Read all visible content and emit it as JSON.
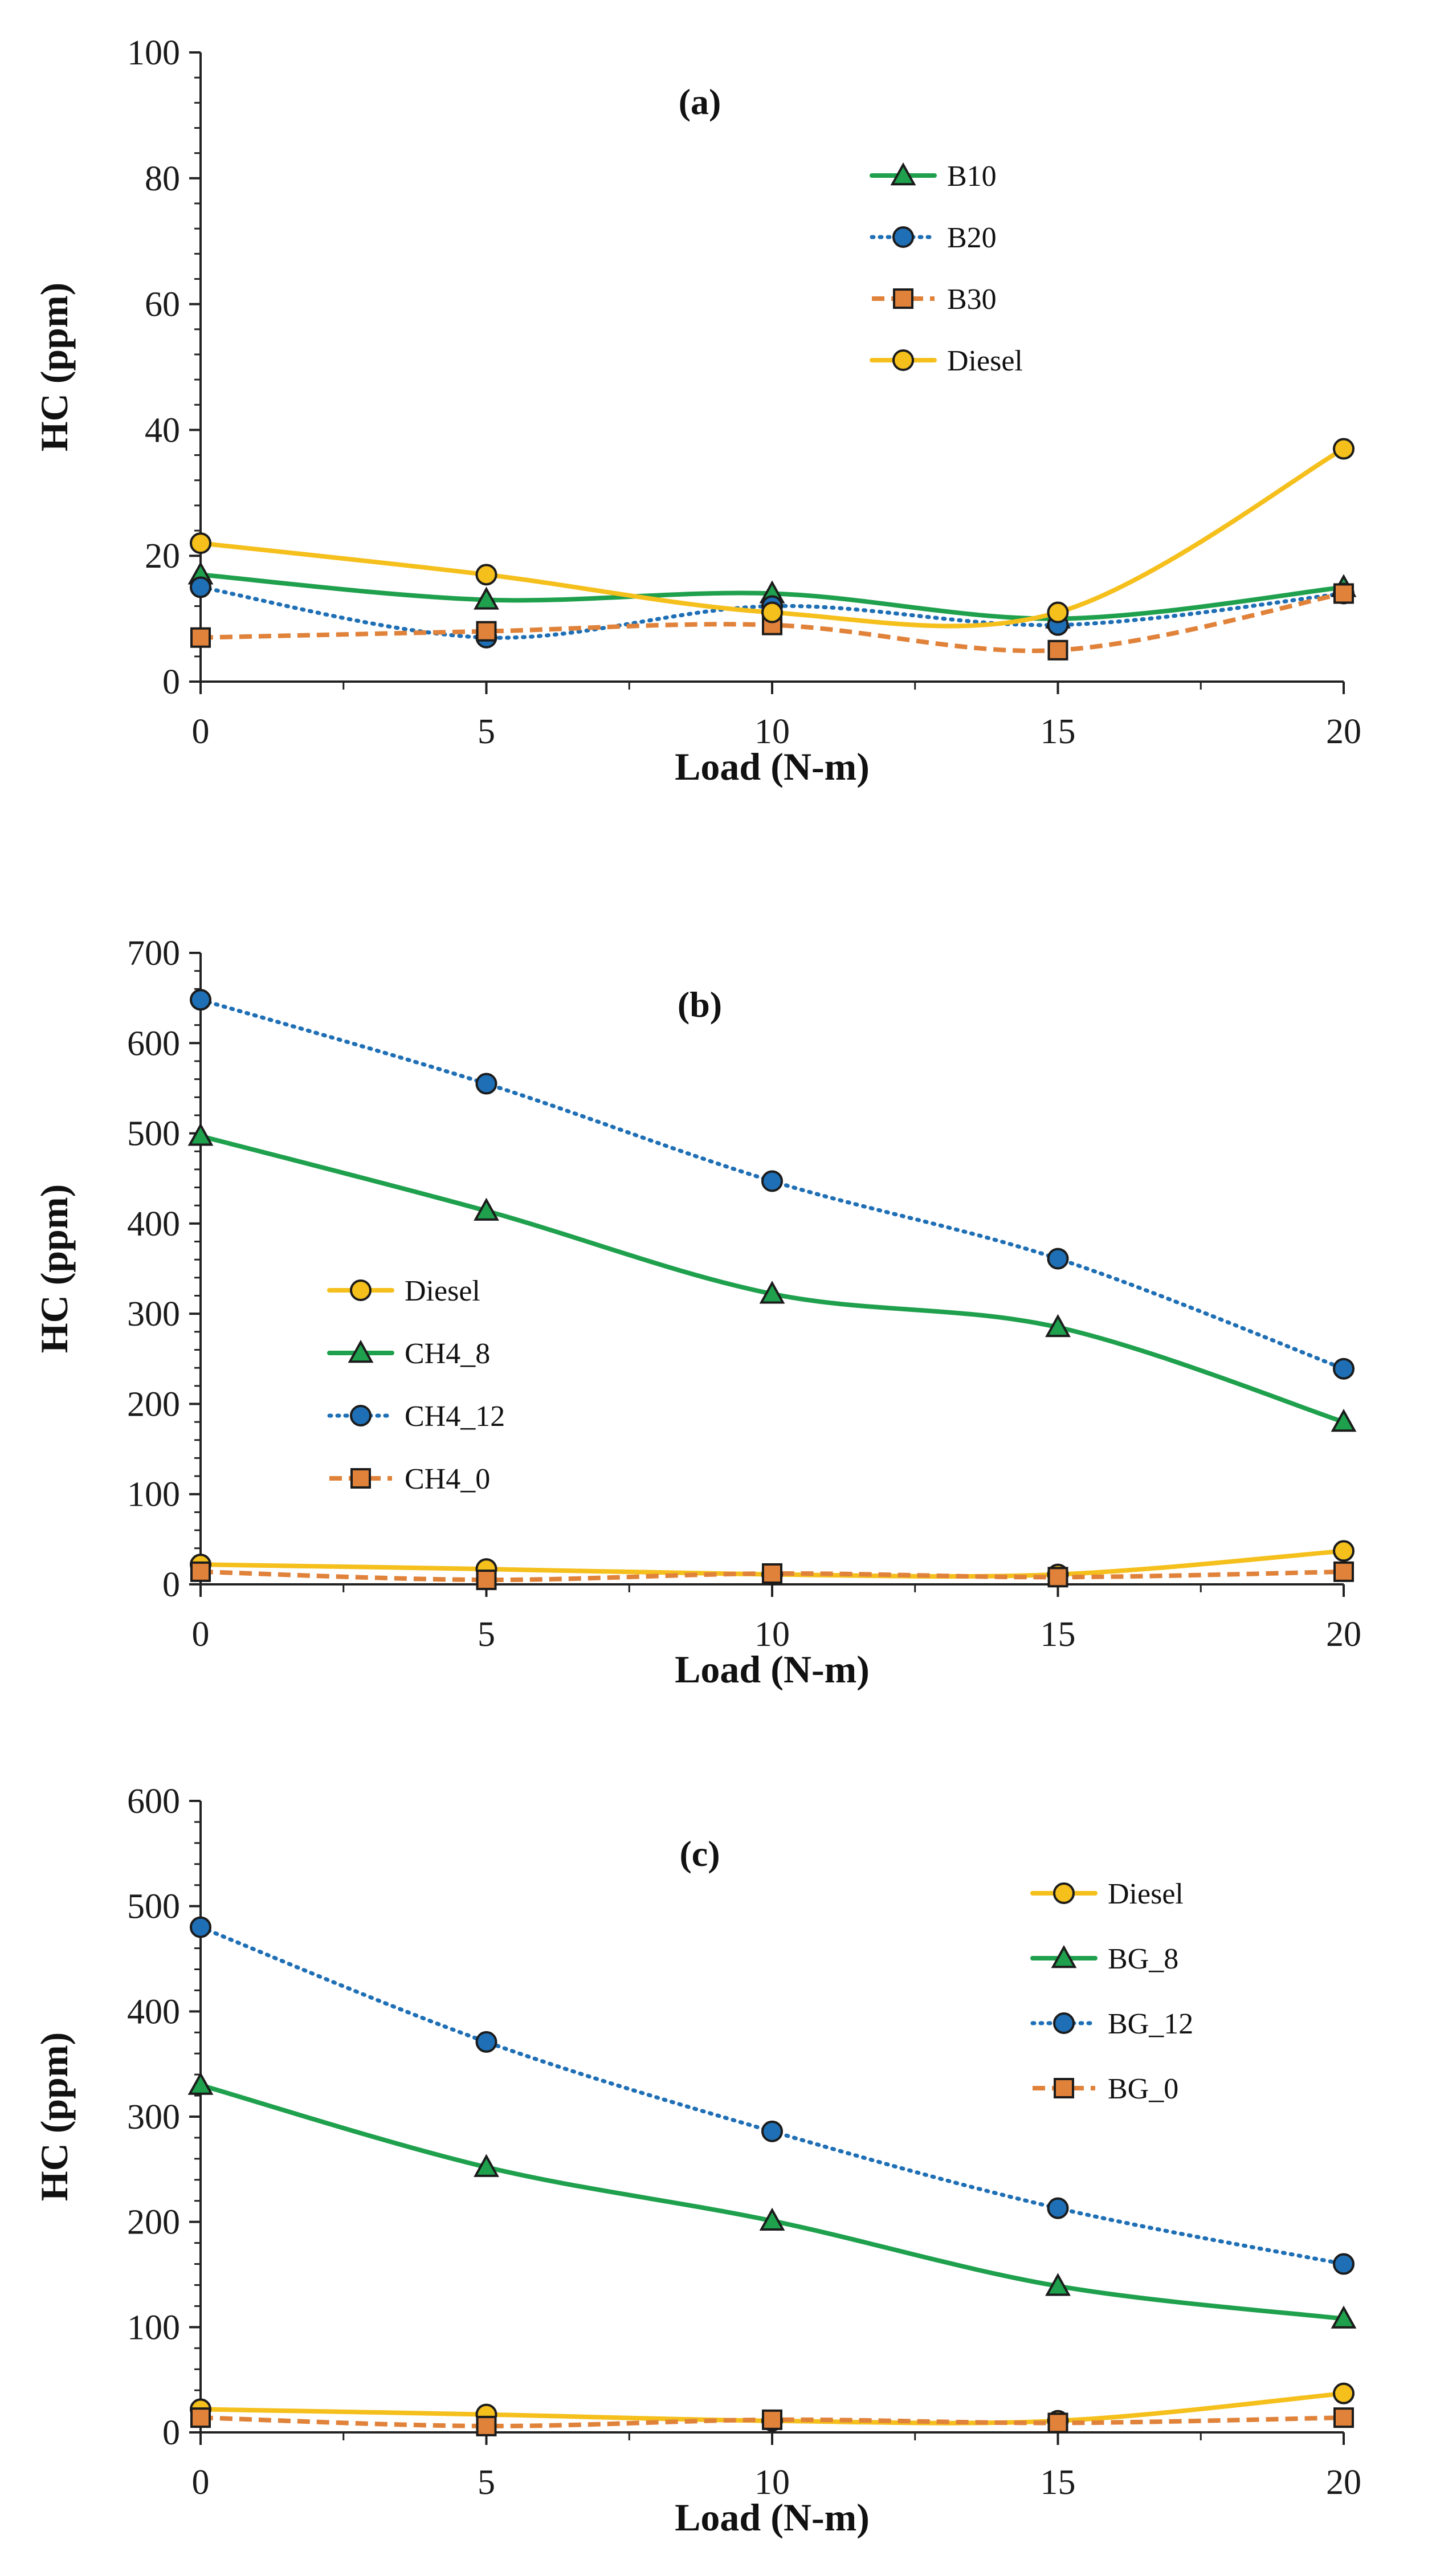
{
  "colors": {
    "diesel": "#F5BF1C",
    "green": "#1FA04D",
    "blue": "#1E6FB5",
    "orange": "#E0823A",
    "axis": "#222222",
    "marker_edge": "#1b1b1b"
  },
  "chart_data": [
    {
      "type": "line",
      "panel_label": "(a)",
      "xlabel": "Load (N-m)",
      "ylabel": "HC (ppm)",
      "x": [
        0,
        5,
        10,
        15,
        20
      ],
      "xlim": [
        0,
        20
      ],
      "ylim": [
        0,
        100
      ],
      "x_ticks": [
        0,
        5,
        10,
        15,
        20
      ],
      "y_ticks": [
        0,
        20,
        40,
        60,
        80,
        100
      ],
      "legend_position": "upper-center-right",
      "series": [
        {
          "name": "B10",
          "values": [
            17,
            13,
            14,
            10,
            15
          ],
          "color": "#1FA04D",
          "line": "solid",
          "marker": "triangle"
        },
        {
          "name": "B20",
          "values": [
            15,
            7,
            12,
            9,
            14
          ],
          "color": "#1E6FB5",
          "line": "dotted",
          "marker": "circle"
        },
        {
          "name": "B30",
          "values": [
            7,
            8,
            9,
            5,
            14
          ],
          "color": "#E0823A",
          "line": "dashed",
          "marker": "square"
        },
        {
          "name": "Diesel",
          "values": [
            22,
            17,
            11,
            11,
            37
          ],
          "color": "#F5BF1C",
          "line": "solid",
          "marker": "circle"
        }
      ]
    },
    {
      "type": "line",
      "panel_label": "(b)",
      "xlabel": "Load (N-m)",
      "ylabel": "HC (ppm)",
      "x": [
        0,
        5,
        10,
        15,
        20
      ],
      "xlim": [
        0,
        20
      ],
      "ylim": [
        0,
        700
      ],
      "x_ticks": [
        0,
        5,
        10,
        15,
        20
      ],
      "y_ticks": [
        0,
        100,
        200,
        300,
        400,
        500,
        600,
        700
      ],
      "legend_position": "center-left",
      "series": [
        {
          "name": "Diesel",
          "values": [
            22,
            17,
            11,
            11,
            37
          ],
          "color": "#F5BF1C",
          "line": "solid",
          "marker": "circle"
        },
        {
          "name": "CH4_8",
          "values": [
            497,
            414,
            322,
            285,
            180
          ],
          "color": "#1FA04D",
          "line": "solid",
          "marker": "triangle"
        },
        {
          "name": "CH4_12",
          "values": [
            648,
            555,
            447,
            361,
            239
          ],
          "color": "#1E6FB5",
          "line": "dotted",
          "marker": "circle"
        },
        {
          "name": "CH4_0",
          "values": [
            14,
            5,
            12,
            8,
            14
          ],
          "color": "#E0823A",
          "line": "dashed",
          "marker": "square"
        }
      ]
    },
    {
      "type": "line",
      "panel_label": "(c)",
      "xlabel": "Load (N-m)",
      "ylabel": "HC (ppm)",
      "x": [
        0,
        5,
        10,
        15,
        20
      ],
      "xlim": [
        0,
        20
      ],
      "ylim": [
        0,
        600
      ],
      "x_ticks": [
        0,
        5,
        10,
        15,
        20
      ],
      "y_ticks": [
        0,
        100,
        200,
        300,
        400,
        500,
        600
      ],
      "legend_position": "top-right",
      "series": [
        {
          "name": "Diesel",
          "values": [
            22,
            17,
            11,
            11,
            37
          ],
          "color": "#F5BF1C",
          "line": "solid",
          "marker": "circle"
        },
        {
          "name": "BG_8",
          "values": [
            330,
            252,
            201,
            139,
            108
          ],
          "color": "#1FA04D",
          "line": "solid",
          "marker": "triangle"
        },
        {
          "name": "BG_12",
          "values": [
            480,
            371,
            286,
            213,
            160
          ],
          "color": "#1E6FB5",
          "line": "dotted",
          "marker": "circle"
        },
        {
          "name": "BG_0",
          "values": [
            14,
            6,
            12,
            9,
            14
          ],
          "color": "#E0823A",
          "line": "dashed",
          "marker": "square"
        }
      ]
    }
  ]
}
